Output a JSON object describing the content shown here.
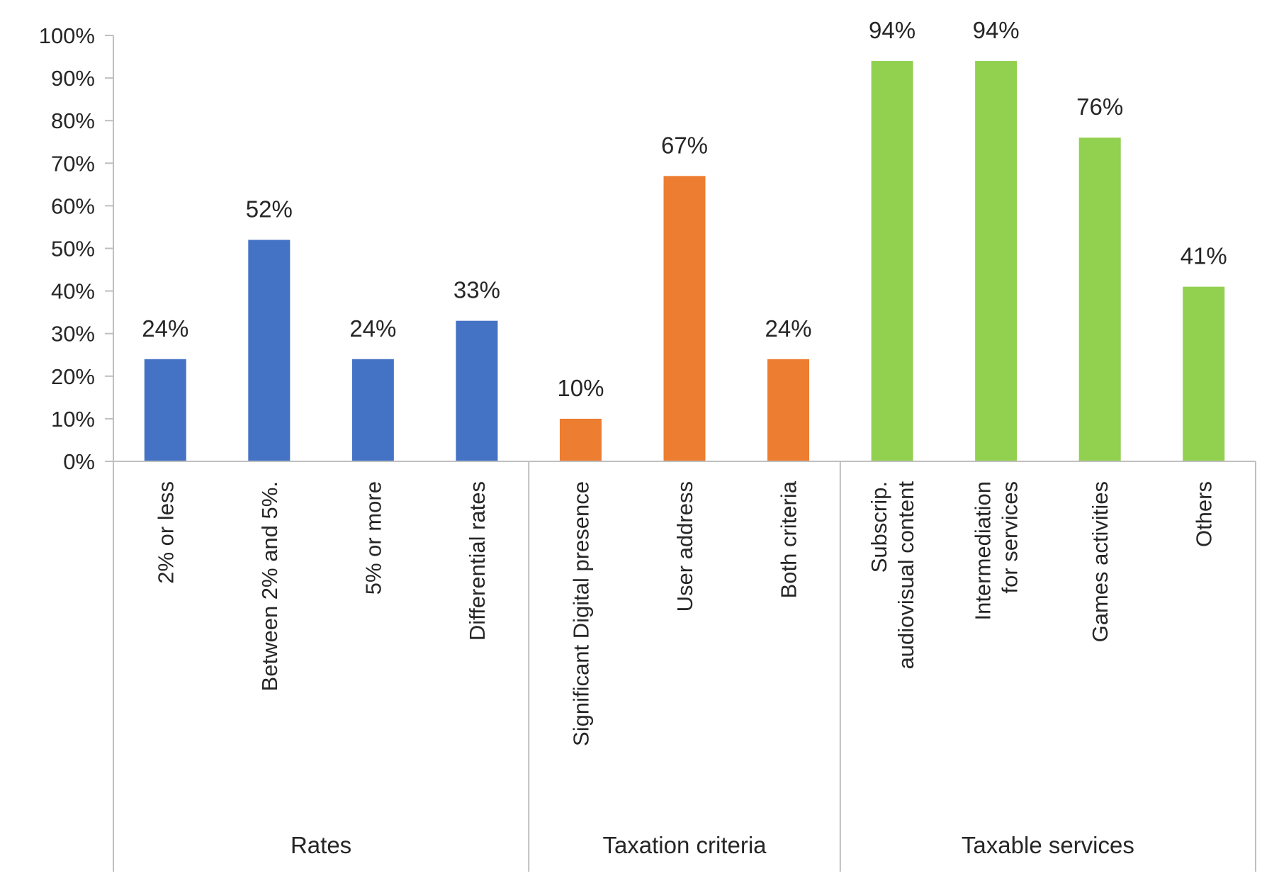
{
  "chart_data": {
    "type": "bar",
    "title": "",
    "xlabel": "",
    "ylabel": "",
    "ylim": [
      0,
      100
    ],
    "y_ticks": [
      "0%",
      "10%",
      "20%",
      "30%",
      "40%",
      "50%",
      "60%",
      "70%",
      "80%",
      "90%",
      "100%"
    ],
    "grid": false,
    "legend": "none",
    "groups": [
      {
        "name": "Rates",
        "color": "#4472C4",
        "categories": [
          {
            "lines": [
              "2% or less"
            ],
            "value": 24,
            "label": "24%"
          },
          {
            "lines": [
              "Between 2% and 5%."
            ],
            "value": 52,
            "label": "52%"
          },
          {
            "lines": [
              "5% or more"
            ],
            "value": 24,
            "label": "24%"
          },
          {
            "lines": [
              "Differential rates"
            ],
            "value": 33,
            "label": "33%"
          }
        ]
      },
      {
        "name": "Taxation criteria",
        "color": "#ED7D31",
        "categories": [
          {
            "lines": [
              "Significant Digital presence"
            ],
            "value": 10,
            "label": "10%"
          },
          {
            "lines": [
              "User address"
            ],
            "value": 67,
            "label": "67%"
          },
          {
            "lines": [
              "Both criteria"
            ],
            "value": 24,
            "label": "24%"
          }
        ]
      },
      {
        "name": "Taxable services",
        "color": "#92D050",
        "categories": [
          {
            "lines": [
              "Subscrip.",
              "audiovisual content"
            ],
            "value": 94,
            "label": "94%"
          },
          {
            "lines": [
              "Intermediation",
              "for services"
            ],
            "value": 94,
            "label": "94%"
          },
          {
            "lines": [
              "Games activities"
            ],
            "value": 76,
            "label": "76%"
          },
          {
            "lines": [
              "Others"
            ],
            "value": 41,
            "label": "41%"
          }
        ]
      }
    ]
  }
}
